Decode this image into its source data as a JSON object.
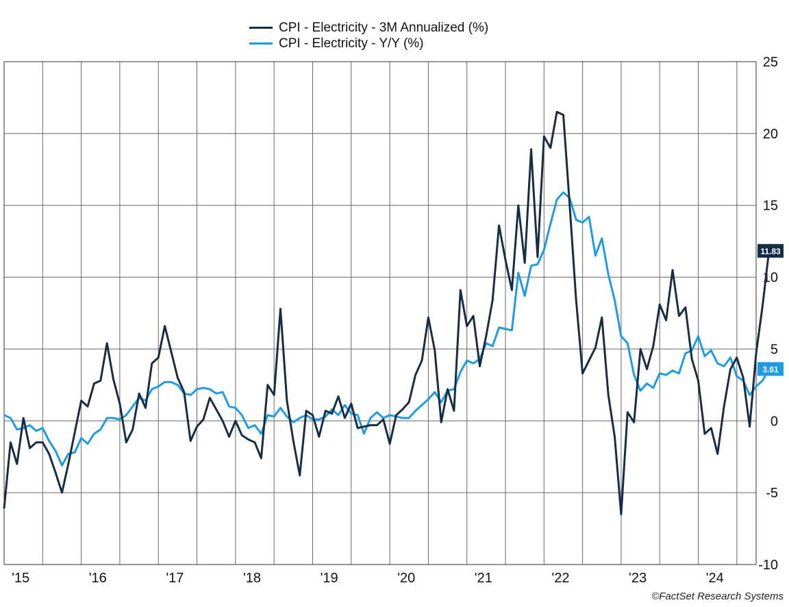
{
  "chart_data": {
    "type": "line",
    "title": "",
    "xlabel": "",
    "ylabel": "",
    "ylim": [
      -10,
      25
    ],
    "y_ticks": [
      "25",
      "20",
      "15",
      "10",
      "5",
      "0",
      "-5",
      "-10"
    ],
    "y_tick_values": [
      25,
      20,
      15,
      10,
      5,
      0,
      -5,
      -10
    ],
    "x_tick_labels": [
      "'15",
      "'16",
      "'17",
      "'18",
      "'19",
      "'20",
      "'21",
      "'22",
      "'23",
      "'24"
    ],
    "x_tick_years": [
      2015,
      2016,
      2017,
      2018,
      2019,
      2020,
      2021,
      2022,
      2023,
      2024
    ],
    "x_start": "2015-01",
    "x_end": "2024-10",
    "grid": true,
    "legend_position": "top-center",
    "series": [
      {
        "name": "CPI - Electricity - 3M Annualized (%)",
        "color": "#152e45",
        "last_value_label": "11.83",
        "points": [
          [
            "2015-01",
            -6.1
          ],
          [
            "2015-02",
            -1.5
          ],
          [
            "2015-03",
            -3.0
          ],
          [
            "2015-04",
            0.2
          ],
          [
            "2015-05",
            -1.9
          ],
          [
            "2015-06",
            -1.5
          ],
          [
            "2015-07",
            -1.5
          ],
          [
            "2015-08",
            -2.3
          ],
          [
            "2015-09",
            -3.6
          ],
          [
            "2015-10",
            -5.0
          ],
          [
            "2015-11",
            -3.0
          ],
          [
            "2015-12",
            -0.8
          ],
          [
            "2016-01",
            1.4
          ],
          [
            "2016-02",
            1.0
          ],
          [
            "2016-03",
            2.6
          ],
          [
            "2016-04",
            2.8
          ],
          [
            "2016-05",
            5.4
          ],
          [
            "2016-06",
            2.9
          ],
          [
            "2016-07",
            1.2
          ],
          [
            "2016-08",
            -1.5
          ],
          [
            "2016-09",
            -0.6
          ],
          [
            "2016-10",
            1.9
          ],
          [
            "2016-11",
            0.9
          ],
          [
            "2016-12",
            4.0
          ],
          [
            "2017-01",
            4.4
          ],
          [
            "2017-02",
            6.6
          ],
          [
            "2017-03",
            4.8
          ],
          [
            "2017-04",
            3.0
          ],
          [
            "2017-05",
            2.0
          ],
          [
            "2017-06",
            -1.4
          ],
          [
            "2017-07",
            -0.4
          ],
          [
            "2017-08",
            0.1
          ],
          [
            "2017-09",
            1.6
          ],
          [
            "2017-10",
            0.8
          ],
          [
            "2017-11",
            0.0
          ],
          [
            "2017-12",
            -1.1
          ],
          [
            "2018-01",
            0.0
          ],
          [
            "2018-02",
            -1.0
          ],
          [
            "2018-03",
            -1.3
          ],
          [
            "2018-04",
            -1.5
          ],
          [
            "2018-05",
            -2.6
          ],
          [
            "2018-06",
            2.5
          ],
          [
            "2018-07",
            1.8
          ],
          [
            "2018-08",
            7.8
          ],
          [
            "2018-09",
            1.4
          ],
          [
            "2018-10",
            -1.4
          ],
          [
            "2018-11",
            -3.8
          ],
          [
            "2018-12",
            0.7
          ],
          [
            "2019-01",
            0.4
          ],
          [
            "2019-02",
            -1.1
          ],
          [
            "2019-03",
            0.7
          ],
          [
            "2019-04",
            0.5
          ],
          [
            "2019-05",
            1.7
          ],
          [
            "2019-06",
            0.2
          ],
          [
            "2019-07",
            1.2
          ],
          [
            "2019-08",
            -0.5
          ],
          [
            "2019-09",
            -0.4
          ],
          [
            "2019-10",
            -0.3
          ],
          [
            "2019-11",
            -0.3
          ],
          [
            "2019-12",
            0.1
          ],
          [
            "2020-01",
            -1.6
          ],
          [
            "2020-02",
            0.4
          ],
          [
            "2020-03",
            0.8
          ],
          [
            "2020-04",
            1.3
          ],
          [
            "2020-05",
            3.2
          ],
          [
            "2020-06",
            4.2
          ],
          [
            "2020-07",
            7.2
          ],
          [
            "2020-08",
            4.9
          ],
          [
            "2020-09",
            -0.1
          ],
          [
            "2020-10",
            2.2
          ],
          [
            "2020-11",
            0.7
          ],
          [
            "2020-12",
            9.1
          ],
          [
            "2021-01",
            6.6
          ],
          [
            "2021-02",
            7.3
          ],
          [
            "2021-03",
            3.8
          ],
          [
            "2021-04",
            5.9
          ],
          [
            "2021-05",
            8.4
          ],
          [
            "2021-06",
            13.6
          ],
          [
            "2021-07",
            11.2
          ],
          [
            "2021-08",
            9.1
          ],
          [
            "2021-09",
            15.0
          ],
          [
            "2021-10",
            11.0
          ],
          [
            "2021-11",
            18.9
          ],
          [
            "2021-12",
            11.4
          ],
          [
            "2022-01",
            19.8
          ],
          [
            "2022-02",
            19.0
          ],
          [
            "2022-03",
            21.5
          ],
          [
            "2022-04",
            21.3
          ],
          [
            "2022-05",
            15.0
          ],
          [
            "2022-06",
            8.4
          ],
          [
            "2022-07",
            3.3
          ],
          [
            "2022-08",
            4.2
          ],
          [
            "2022-09",
            5.1
          ],
          [
            "2022-10",
            7.2
          ],
          [
            "2022-11",
            1.8
          ],
          [
            "2022-12",
            -1.1
          ],
          [
            "2023-01",
            -6.5
          ],
          [
            "2023-02",
            0.6
          ],
          [
            "2023-03",
            -0.1
          ],
          [
            "2023-04",
            5.0
          ],
          [
            "2023-05",
            3.6
          ],
          [
            "2023-06",
            5.2
          ],
          [
            "2023-07",
            8.1
          ],
          [
            "2023-08",
            7.0
          ],
          [
            "2023-09",
            10.5
          ],
          [
            "2023-10",
            7.3
          ],
          [
            "2023-11",
            7.9
          ],
          [
            "2023-12",
            4.3
          ],
          [
            "2024-01",
            2.8
          ],
          [
            "2024-02",
            -0.9
          ],
          [
            "2024-03",
            -0.5
          ],
          [
            "2024-04",
            -2.3
          ],
          [
            "2024-05",
            1.0
          ],
          [
            "2024-06",
            3.6
          ],
          [
            "2024-07",
            4.4
          ],
          [
            "2024-08",
            3.0
          ],
          [
            "2024-09",
            -0.4
          ],
          [
            "2024-10",
            4.7
          ],
          [
            "2024-11",
            8.0
          ],
          [
            "2024-12",
            11.83
          ]
        ]
      },
      {
        "name": "CPI - Electricity - Y/Y (%)",
        "color": "#1e9be3",
        "last_value_label": "3.61",
        "points": [
          [
            "2015-01",
            0.4
          ],
          [
            "2015-02",
            0.2
          ],
          [
            "2015-03",
            -0.6
          ],
          [
            "2015-04",
            -0.5
          ],
          [
            "2015-05",
            -0.3
          ],
          [
            "2015-06",
            -0.7
          ],
          [
            "2015-07",
            -0.5
          ],
          [
            "2015-08",
            -1.4
          ],
          [
            "2015-09",
            -2.1
          ],
          [
            "2015-10",
            -3.1
          ],
          [
            "2015-11",
            -2.3
          ],
          [
            "2015-12",
            -2.2
          ],
          [
            "2016-01",
            -1.2
          ],
          [
            "2016-02",
            -1.6
          ],
          [
            "2016-03",
            -0.9
          ],
          [
            "2016-04",
            -0.6
          ],
          [
            "2016-05",
            0.2
          ],
          [
            "2016-06",
            0.2
          ],
          [
            "2016-07",
            0.1
          ],
          [
            "2016-08",
            0.4
          ],
          [
            "2016-09",
            1.0
          ],
          [
            "2016-10",
            1.6
          ],
          [
            "2016-11",
            1.4
          ],
          [
            "2016-12",
            2.2
          ],
          [
            "2017-01",
            2.4
          ],
          [
            "2017-02",
            2.7
          ],
          [
            "2017-03",
            2.7
          ],
          [
            "2017-04",
            2.5
          ],
          [
            "2017-05",
            1.9
          ],
          [
            "2017-06",
            1.8
          ],
          [
            "2017-07",
            2.2
          ],
          [
            "2017-08",
            2.3
          ],
          [
            "2017-09",
            2.2
          ],
          [
            "2017-10",
            1.9
          ],
          [
            "2017-11",
            2.0
          ],
          [
            "2017-12",
            1.0
          ],
          [
            "2018-01",
            0.9
          ],
          [
            "2018-02",
            0.4
          ],
          [
            "2018-03",
            -0.5
          ],
          [
            "2018-04",
            -0.3
          ],
          [
            "2018-05",
            -0.9
          ],
          [
            "2018-06",
            0.4
          ],
          [
            "2018-07",
            0.3
          ],
          [
            "2018-08",
            0.9
          ],
          [
            "2018-09",
            0.3
          ],
          [
            "2018-10",
            -0.1
          ],
          [
            "2018-11",
            0.2
          ],
          [
            "2018-12",
            0.4
          ],
          [
            "2019-01",
            0.1
          ],
          [
            "2019-02",
            0.1
          ],
          [
            "2019-03",
            0.3
          ],
          [
            "2019-04",
            0.8
          ],
          [
            "2019-05",
            0.4
          ],
          [
            "2019-06",
            1.1
          ],
          [
            "2019-07",
            0.5
          ],
          [
            "2019-08",
            0.4
          ],
          [
            "2019-09",
            -0.9
          ],
          [
            "2019-10",
            0.2
          ],
          [
            "2019-11",
            0.6
          ],
          [
            "2019-12",
            0.2
          ],
          [
            "2020-01",
            0.4
          ],
          [
            "2020-02",
            0.3
          ],
          [
            "2020-03",
            0.2
          ],
          [
            "2020-04",
            0.2
          ],
          [
            "2020-05",
            0.7
          ],
          [
            "2020-06",
            1.1
          ],
          [
            "2020-07",
            1.5
          ],
          [
            "2020-08",
            2.0
          ],
          [
            "2020-09",
            1.3
          ],
          [
            "2020-10",
            2.1
          ],
          [
            "2020-11",
            2.2
          ],
          [
            "2020-12",
            3.4
          ],
          [
            "2021-01",
            4.2
          ],
          [
            "2021-02",
            4.0
          ],
          [
            "2021-03",
            4.3
          ],
          [
            "2021-04",
            5.4
          ],
          [
            "2021-05",
            5.2
          ],
          [
            "2021-06",
            6.5
          ],
          [
            "2021-07",
            6.4
          ],
          [
            "2021-08",
            6.3
          ],
          [
            "2021-09",
            10.3
          ],
          [
            "2021-10",
            8.7
          ],
          [
            "2021-11",
            10.8
          ],
          [
            "2021-12",
            10.9
          ],
          [
            "2022-01",
            11.9
          ],
          [
            "2022-02",
            13.7
          ],
          [
            "2022-03",
            15.4
          ],
          [
            "2022-04",
            15.9
          ],
          [
            "2022-05",
            15.5
          ],
          [
            "2022-06",
            14.0
          ],
          [
            "2022-07",
            13.8
          ],
          [
            "2022-08",
            14.2
          ],
          [
            "2022-09",
            11.5
          ],
          [
            "2022-10",
            12.7
          ],
          [
            "2022-11",
            10.2
          ],
          [
            "2022-12",
            8.4
          ],
          [
            "2023-01",
            5.9
          ],
          [
            "2023-02",
            5.4
          ],
          [
            "2023-03",
            3.2
          ],
          [
            "2023-04",
            2.1
          ],
          [
            "2023-05",
            2.6
          ],
          [
            "2023-06",
            2.3
          ],
          [
            "2023-07",
            3.3
          ],
          [
            "2023-08",
            3.2
          ],
          [
            "2023-09",
            3.5
          ],
          [
            "2023-10",
            3.3
          ],
          [
            "2023-11",
            4.7
          ],
          [
            "2023-12",
            4.9
          ],
          [
            "2024-01",
            5.9
          ],
          [
            "2024-02",
            4.5
          ],
          [
            "2024-03",
            4.9
          ],
          [
            "2024-04",
            4.0
          ],
          [
            "2024-05",
            3.8
          ],
          [
            "2024-06",
            4.4
          ],
          [
            "2024-07",
            3.1
          ],
          [
            "2024-08",
            2.8
          ],
          [
            "2024-09",
            1.8
          ],
          [
            "2024-10",
            2.4
          ],
          [
            "2024-11",
            2.8
          ],
          [
            "2024-12",
            3.61
          ]
        ]
      }
    ]
  },
  "footer": {
    "source": "©FactSet Research Systems"
  }
}
